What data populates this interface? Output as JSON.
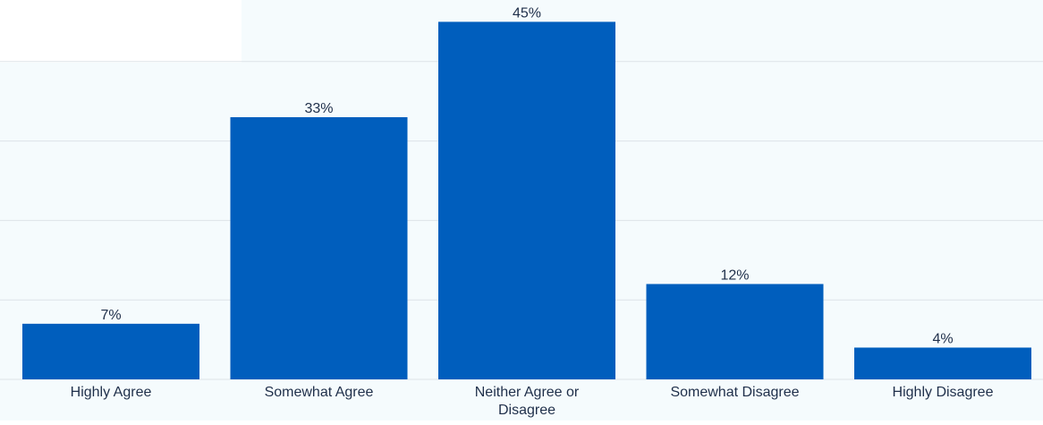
{
  "chart_data": {
    "type": "bar",
    "categories": [
      "Highly Agree",
      "Somewhat Agree",
      "Neither Agree or Disagree",
      "Somewhat Disagree",
      "Highly Disagree"
    ],
    "category_lines": [
      [
        "Highly Agree"
      ],
      [
        "Somewhat Agree"
      ],
      [
        "Neither Agree or",
        "Disagree"
      ],
      [
        "Somewhat Disagree"
      ],
      [
        "Highly Disagree"
      ]
    ],
    "values": [
      7,
      33,
      45,
      12,
      4
    ],
    "value_labels": [
      "7%",
      "33%",
      "45%",
      "12%",
      "4%"
    ],
    "ylim": [
      0,
      40
    ],
    "grid": true,
    "legend": "none"
  },
  "colors": {
    "bar": "#005ebd",
    "plot_background": "#f5fbfd",
    "gridline": "#dde3e8",
    "text": "#1f2f4a",
    "page_background": "#ffffff"
  }
}
